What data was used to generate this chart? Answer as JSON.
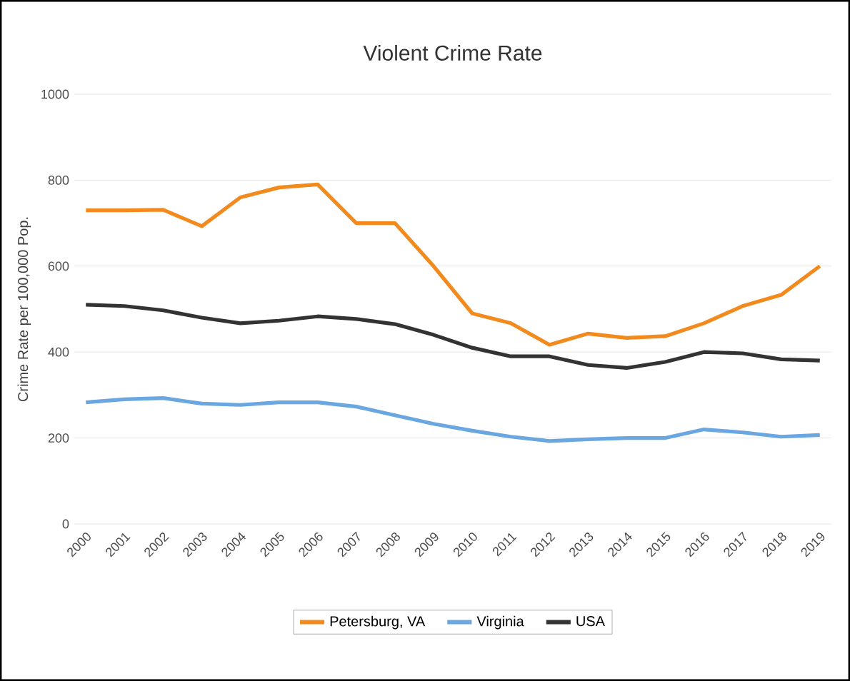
{
  "chart_data": {
    "type": "line",
    "title": "Violent Crime Rate",
    "ylabel": "Crime Rate per 100,000 Pop.",
    "categories": [
      "2000",
      "2001",
      "2002",
      "2003",
      "2004",
      "2005",
      "2006",
      "2007",
      "2008",
      "2009",
      "2010",
      "2011",
      "2012",
      "2013",
      "2014",
      "2015",
      "2016",
      "2017",
      "2018",
      "2019"
    ],
    "series": [
      {
        "name": "Petersburg, VA",
        "color": "#f28a1e",
        "values": [
          730,
          730,
          731,
          693,
          760,
          783,
          790,
          700,
          700,
          600,
          490,
          467,
          417,
          443,
          433,
          437,
          467,
          507,
          533,
          600
        ]
      },
      {
        "name": "Virginia",
        "color": "#6aa6e0",
        "values": [
          283,
          290,
          293,
          280,
          277,
          283,
          283,
          273,
          253,
          233,
          217,
          203,
          193,
          197,
          200,
          200,
          220,
          213,
          203,
          207
        ]
      },
      {
        "name": "USA",
        "color": "#333333",
        "values": [
          510,
          507,
          497,
          480,
          467,
          473,
          483,
          477,
          465,
          440,
          410,
          390,
          390,
          370,
          363,
          377,
          400,
          397,
          383,
          380
        ]
      }
    ],
    "ylim": [
      0,
      1000
    ],
    "yticks": [
      0,
      200,
      400,
      600,
      800,
      1000
    ],
    "grid": "y",
    "legend": "bottom",
    "marker": "none",
    "line_style": "solid"
  }
}
